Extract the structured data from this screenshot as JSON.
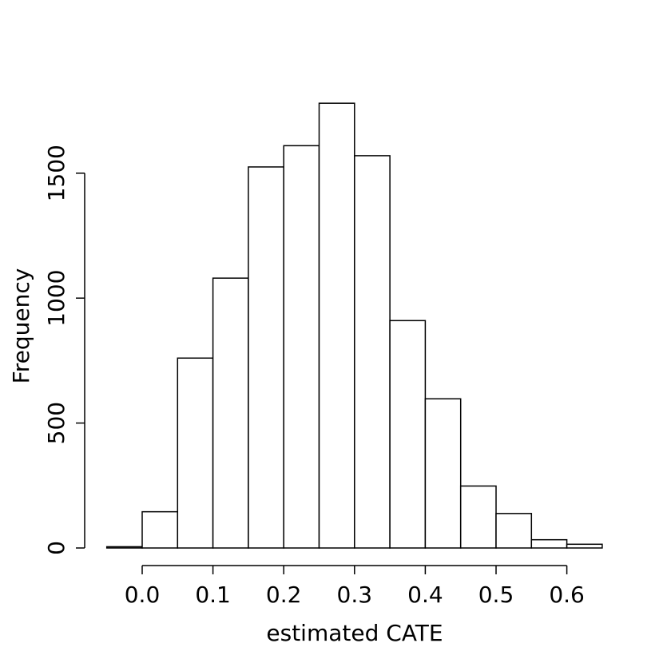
{
  "chart_data": {
    "type": "bar",
    "title": "",
    "xlabel": "estimated CATE",
    "ylabel": "Frequency",
    "bin_edges": [
      -0.05,
      0.0,
      0.05,
      0.1,
      0.15,
      0.2,
      0.25,
      0.3,
      0.35,
      0.4,
      0.45,
      0.5,
      0.55,
      0.6,
      0.65
    ],
    "values": [
      5,
      145,
      760,
      1080,
      1525,
      1610,
      1780,
      1570,
      910,
      597,
      248,
      138,
      33,
      15
    ],
    "x_ticks": [
      "0.0",
      "0.1",
      "0.2",
      "0.3",
      "0.4",
      "0.5",
      "0.6"
    ],
    "x_tick_values": [
      0.0,
      0.1,
      0.2,
      0.3,
      0.4,
      0.5,
      0.6
    ],
    "y_ticks": [
      "0",
      "500",
      "1000",
      "1500"
    ],
    "y_tick_values": [
      0,
      500,
      1000,
      1500
    ],
    "xlim": [
      -0.05,
      0.65
    ],
    "ylim": [
      0,
      1780
    ],
    "grid": false,
    "colors": {
      "bar_fill": "#ffffff",
      "bar_stroke": "#000000"
    }
  }
}
